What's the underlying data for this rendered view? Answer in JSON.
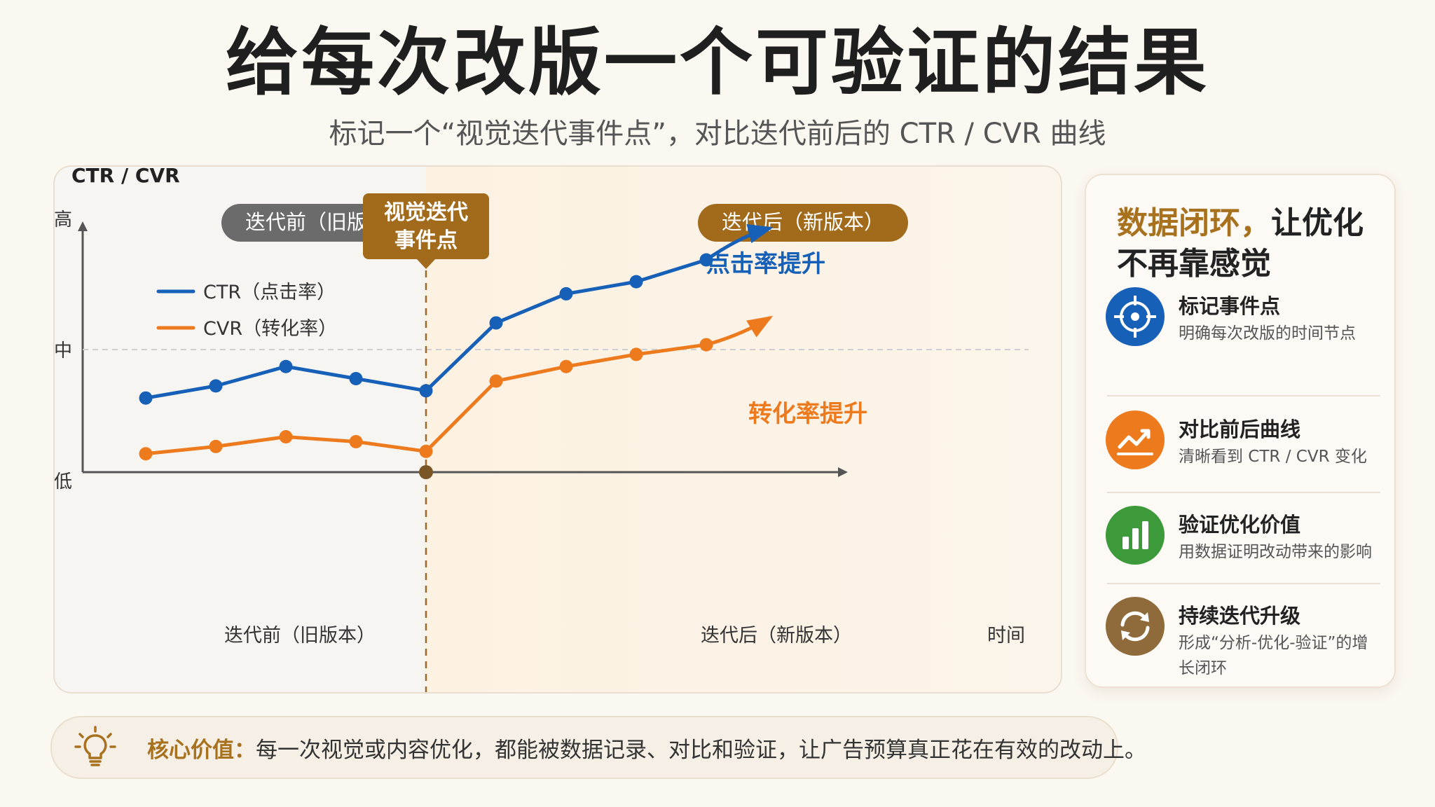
{
  "header": {
    "title": "给每次改版一个可验证的结果",
    "subtitle": "标记一个“视觉迭代事件点”，对比迭代前后的 CTR / CVR 曲线"
  },
  "chart_data": {
    "type": "line",
    "ylabel": "CTR / CVR",
    "xlabel": "时间",
    "y_ticks": [
      "高",
      "中",
      "低"
    ],
    "x_labels": [
      "迭代前（旧版本）",
      "迭代后（新版本）"
    ],
    "phase_labels": {
      "before": "迭代前（旧版本）",
      "after": "迭代后（新版本）"
    },
    "event_label": "视觉迭代事件点",
    "event_label_lines": [
      "视觉迭代",
      "事件点"
    ],
    "event_index": 4,
    "x": [
      1,
      2,
      3,
      4,
      5,
      6,
      7,
      8,
      9
    ],
    "grid": "dashed line at 中",
    "legend_position": "top-left",
    "series": [
      {
        "name": "CTR（点击率）",
        "color": "#1660b8",
        "values": [
          0.3,
          0.35,
          0.43,
          0.38,
          0.33,
          0.61,
          0.73,
          0.78,
          0.87
        ],
        "trend_arrow": [
          0.97,
          1.0
        ]
      },
      {
        "name": "CVR（转化率）",
        "color": "#ee7a1e",
        "values": [
          0.07,
          0.1,
          0.14,
          0.12,
          0.08,
          0.37,
          0.43,
          0.48,
          0.52
        ],
        "trend_arrow": [
          0.56,
          0.63
        ]
      }
    ],
    "annotations": [
      {
        "text": "点击率提升",
        "color": "#1660b8"
      },
      {
        "text": "转化率提升",
        "color": "#ee7a1e"
      }
    ]
  },
  "sidebar": {
    "title_accent": "数据闭环，",
    "title_rest": "让优化不再靠感觉",
    "items": [
      {
        "title": "标记事件点",
        "desc": "明确每次改版的时间节点",
        "icon": "target-icon",
        "color": "#1660b8"
      },
      {
        "title": "对比前后曲线",
        "desc": "清晰看到 CTR / CVR 变化",
        "icon": "trend-chart-icon",
        "color": "#ee7a1e"
      },
      {
        "title": "验证优化价值",
        "desc": "用数据证明改动带来的影响",
        "icon": "bar-chart-icon",
        "color": "#3d9a3a"
      },
      {
        "title": "持续迭代升级",
        "desc": "形成“分析-优化-验证”的增长闭环",
        "icon": "refresh-cycle-icon",
        "color": "#8f6a3a"
      }
    ]
  },
  "footer": {
    "label": "核心价值：",
    "text": "每一次视觉或内容优化，都能被数据记录、对比和验证，让广告预算真正花在有效的改动上。"
  }
}
